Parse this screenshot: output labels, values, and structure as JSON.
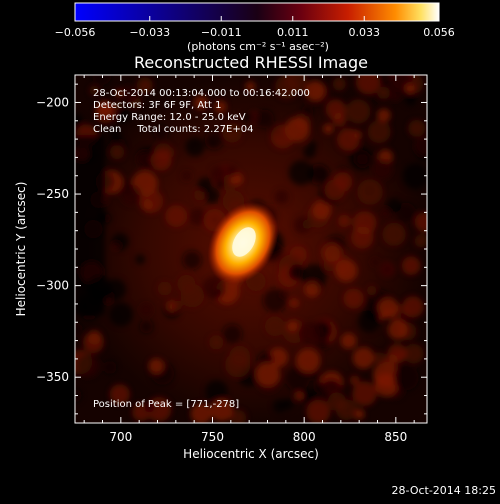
{
  "chart_data": {
    "type": "heatmap",
    "title": "Reconstructed RHESSI Image",
    "xlabel": "Heliocentric X (arcsec)",
    "ylabel": "Heliocentric Y (arcsec)",
    "xlim": [
      675,
      867
    ],
    "ylim": [
      -375,
      -185
    ],
    "xticks": [
      700,
      750,
      800,
      850
    ],
    "yticks": [
      -200,
      -250,
      -300,
      -350
    ],
    "annotations": [
      "28-Oct-2014 00:13:04.000 to 00:16:42.000",
      "Detectors: 3F 6F 9F, Att 1",
      "Energy Range: 12.0 - 25.0 keV",
      "Clean     Total counts: 2.27E+04"
    ],
    "peak_label": "Position of Peak = [771,-278]",
    "peak": {
      "x": 771,
      "y": -278
    },
    "colorbar": {
      "min": -0.056,
      "max": 0.056,
      "ticks": [
        "-0.056",
        "-0.033",
        "-0.011",
        "0.011",
        "0.033",
        "0.056"
      ],
      "unit_label": "(photons cm⁻² s⁻¹ asec⁻²)",
      "colormap": "RHESSI blue-purple-red-yellow-white"
    },
    "colors": {
      "cmap_start": "#0000ff",
      "cmap_mid_dark": "#3a0030",
      "cmap_red": "#c81e00",
      "cmap_orange": "#ff8c00",
      "cmap_yellow": "#ffe060",
      "cmap_end": "#ffffff"
    }
  },
  "footer_timestamp": "28-Oct-2014 18:25"
}
